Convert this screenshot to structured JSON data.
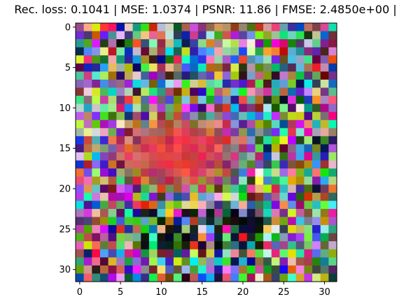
{
  "chart_data": {
    "type": "heatmap",
    "title": "Rec. loss: 0.1041 | MSE: 1.0374 | PSNR: 11.86 | FMSE: 2.4850e+00 |",
    "xlabel": "",
    "ylabel": "",
    "grid_size": [
      32,
      32
    ],
    "xlim": [
      -0.5,
      31.5
    ],
    "ylim": [
      31.5,
      -0.5
    ],
    "x_ticks": [
      0,
      5,
      10,
      15,
      20,
      25,
      30
    ],
    "y_ticks": [
      0,
      5,
      10,
      15,
      20,
      25,
      30
    ],
    "x_tick_labels": [
      "0",
      "5",
      "10",
      "15",
      "20",
      "25",
      "30"
    ],
    "y_tick_labels": [
      "0",
      "5",
      "10",
      "15",
      "20",
      "25",
      "30"
    ],
    "grid": false,
    "colormap": "rgb-noise"
  }
}
